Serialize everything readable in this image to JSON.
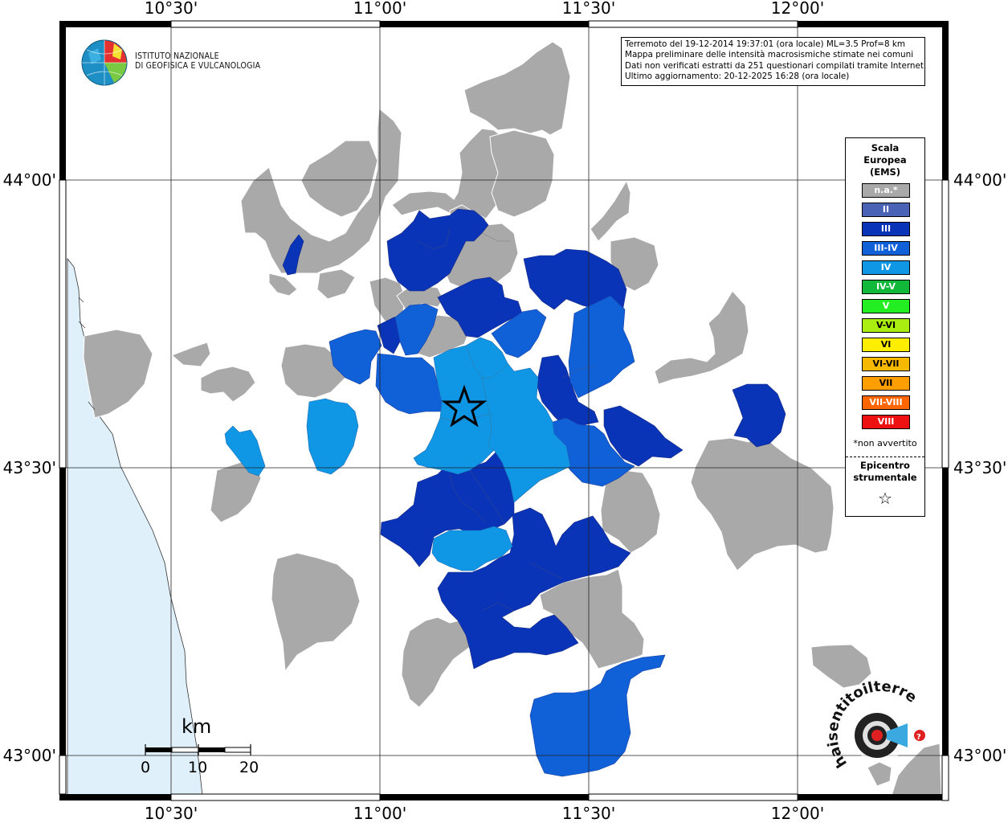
{
  "title": "Mappa preliminare delle intensità macrosismiche",
  "info_box": {
    "line1": "Terremoto del 19-12-2014 19:37:01 (ora locale) ML=3.5 Prof=8 km",
    "line2": "Mappa preliminare delle intensità macrosismiche stimate nei comuni",
    "line3": "Dati non verificati estratti da 251 questionari compilati tramite Internet.",
    "line4": "Ultimo aggiornamento: 20-12-2025 16:28 (ora locale)"
  },
  "logo": {
    "name": "ingv-logo-icon",
    "line1": "ISTITUTO NAZIONALE",
    "line2": "DI GEOFISICA E VULCANOLOGIA"
  },
  "axes": {
    "top_labels": [
      "10°30'",
      "11°00'",
      "11°30'",
      "12°00'"
    ],
    "bottom_labels": [
      "10°30'",
      "11°00'",
      "11°30'",
      "12°00'"
    ],
    "left_labels": [
      "44°00'",
      "43°30'",
      "43°00'"
    ],
    "right_labels": [
      "44°00'",
      "43°30'",
      "43°00'"
    ]
  },
  "legend": {
    "title_line1": "Scala",
    "title_line2": "Europea",
    "title_line3": "(EMS)",
    "items": [
      {
        "label": "n.a.*",
        "color": "#a9a9a9"
      },
      {
        "label": "II",
        "color": "#4a63b5"
      },
      {
        "label": "III",
        "color": "#0a34b8"
      },
      {
        "label": "III-IV",
        "color": "#1060d8"
      },
      {
        "label": "IV",
        "color": "#0f97e6"
      },
      {
        "label": "IV-V",
        "color": "#12b83a"
      },
      {
        "label": "V",
        "color": "#22ee22"
      },
      {
        "label": "V-VI",
        "color": "#aaee11"
      },
      {
        "label": "VI",
        "color": "#ffee00"
      },
      {
        "label": "VI-VII",
        "color": "#f6b800"
      },
      {
        "label": "VII",
        "color": "#ff9e00"
      },
      {
        "label": "VII-VIII",
        "color": "#ff6600"
      },
      {
        "label": "VIII",
        "color": "#ee1111"
      }
    ],
    "note": "*non avvertito",
    "epicenter_line1": "Epicentro",
    "epicenter_line2": "strumentale",
    "epicenter_symbol": "☆"
  },
  "scale_bar": {
    "unit": "km",
    "labels": [
      "0",
      "10",
      "20"
    ]
  },
  "watermark": {
    "name": "haisentitoilterremoto-logo-icon",
    "text": "haisentitoilterremoto.it"
  },
  "colors": {
    "na": "#a9a9a9",
    "III": "#0a34b8",
    "III_IV": "#1060d8",
    "IV": "#0f97e6",
    "sea": "#dff0fb"
  }
}
